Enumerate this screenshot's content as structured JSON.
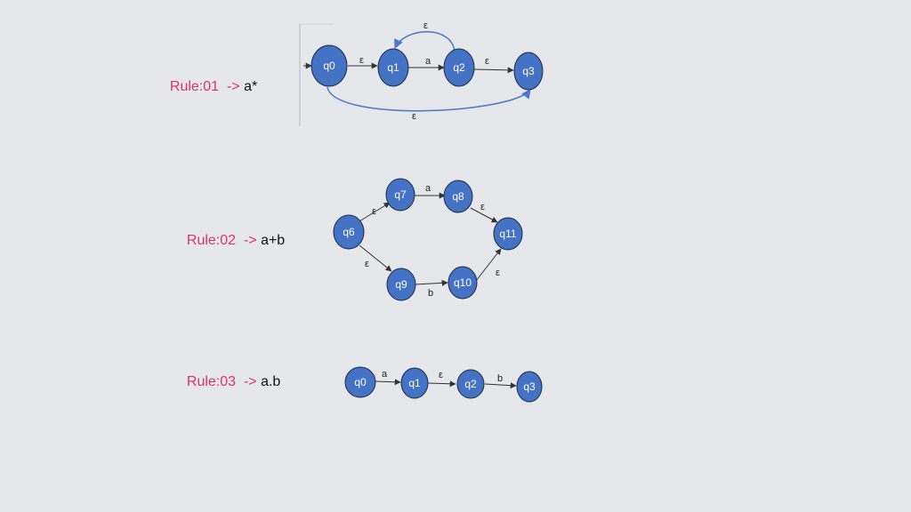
{
  "rules": [
    {
      "name": "Rule:01",
      "arrow": "->",
      "expression": "a*"
    },
    {
      "name": "Rule:02",
      "arrow": "->",
      "expression": "a+b"
    },
    {
      "name": "Rule:03",
      "arrow": "->",
      "expression": "a.b"
    }
  ],
  "colors": {
    "state_fill": "#4472c4",
    "state_stroke": "#1f2a44",
    "edge": "#333333",
    "loop_edge": "#4a78c8",
    "rule_name": "#d6336c"
  },
  "diagrams": [
    {
      "states": [
        "q0",
        "q1",
        "q2",
        "q3"
      ],
      "transitions": [
        {
          "from": "q0",
          "to": "q1",
          "label": "ε"
        },
        {
          "from": "q1",
          "to": "q2",
          "label": "a"
        },
        {
          "from": "q2",
          "to": "q3",
          "label": "ε"
        },
        {
          "from": "q2",
          "to": "q1",
          "label": "ε"
        },
        {
          "from": "q0",
          "to": "q3",
          "label": "ε"
        }
      ]
    },
    {
      "states": [
        "q6",
        "q7",
        "q8",
        "q9",
        "q10",
        "q11"
      ],
      "transitions": [
        {
          "from": "q6",
          "to": "q7",
          "label": "ε"
        },
        {
          "from": "q7",
          "to": "q8",
          "label": "a"
        },
        {
          "from": "q8",
          "to": "q11",
          "label": "ε"
        },
        {
          "from": "q6",
          "to": "q9",
          "label": "ε"
        },
        {
          "from": "q9",
          "to": "q10",
          "label": "b"
        },
        {
          "from": "q10",
          "to": "q11",
          "label": "ε"
        }
      ]
    },
    {
      "states": [
        "q0",
        "q1",
        "q2",
        "q3"
      ],
      "transitions": [
        {
          "from": "q0",
          "to": "q1",
          "label": "a"
        },
        {
          "from": "q1",
          "to": "q2",
          "label": "ε"
        },
        {
          "from": "q2",
          "to": "q3",
          "label": "b"
        }
      ]
    }
  ]
}
